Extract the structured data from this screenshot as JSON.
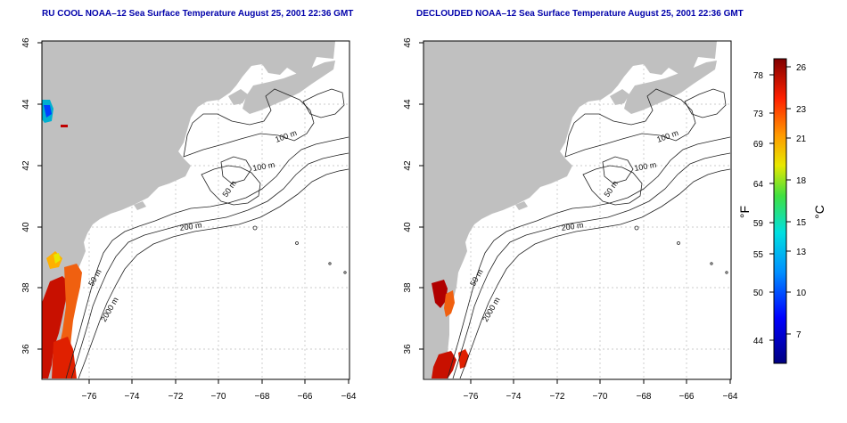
{
  "left_panel": {
    "title": "RU COOL NOAA–12 Sea Surface Temperature August 25, 2001 22:36 GMT",
    "x_ticks": [
      "−76",
      "−74",
      "−72",
      "−70",
      "−68",
      "−66",
      "−64"
    ],
    "y_ticks": [
      "46",
      "44",
      "42",
      "40",
      "38",
      "36"
    ],
    "contour_labels": [
      "100 m",
      "100 m",
      "50 m",
      "200 m",
      "50 m",
      "2000 m"
    ]
  },
  "right_panel": {
    "title": "DECLOUDED NOAA–12 Sea Surface Temperature August 25, 2001 22:36 GMT",
    "x_ticks": [
      "−76",
      "−74",
      "−72",
      "−70",
      "−68",
      "−66",
      "−64"
    ],
    "y_ticks": [
      "46",
      "44",
      "42",
      "40",
      "38",
      "36"
    ],
    "contour_labels": [
      "100 m",
      "100 m",
      "50 m",
      "200 m",
      "50 m",
      "2000 m"
    ]
  },
  "colorbar": {
    "fahrenheit_ticks": [
      "78",
      "73",
      "69",
      "64",
      "59",
      "55",
      "50",
      "44"
    ],
    "celsius_ticks": [
      "26",
      "23",
      "21",
      "18",
      "15",
      "13",
      "10",
      "7"
    ],
    "fahrenheit_unit": "°F",
    "celsius_unit": "°C"
  },
  "colors": {
    "land": "#c0c0c0",
    "ocean": "#ffffff",
    "title_text": "#0000aa",
    "grid": "#bbbbbb"
  }
}
